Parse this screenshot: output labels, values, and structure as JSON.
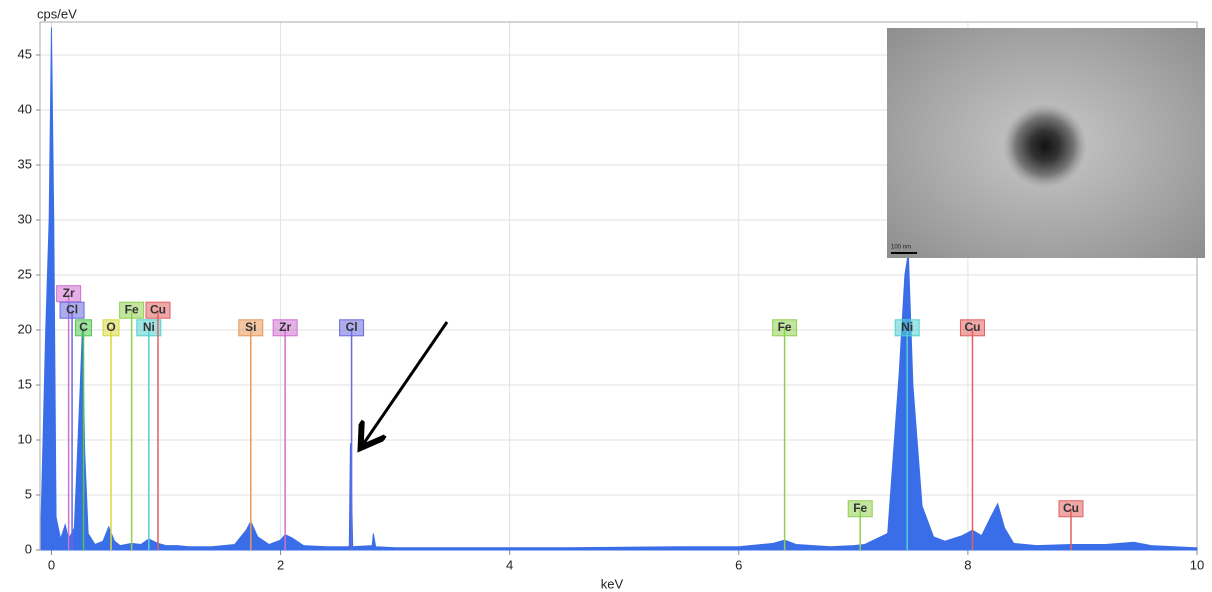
{
  "chart_data": {
    "type": "area",
    "y_label": "cps/eV",
    "x_label": "keV",
    "color": "#3a6ee8",
    "xlim": [
      -0.1,
      10
    ],
    "ylim": [
      0,
      48
    ],
    "xticks": [
      0,
      2,
      4,
      6,
      8,
      10
    ],
    "yticks": [
      0,
      5,
      10,
      15,
      20,
      25,
      30,
      35,
      40,
      45
    ],
    "grid": true,
    "x": [
      -0.09,
      -0.05,
      -0.02,
      0,
      0.02,
      0.04,
      0.08,
      0.12,
      0.15,
      0.2,
      0.25,
      0.27,
      0.29,
      0.32,
      0.38,
      0.45,
      0.5,
      0.55,
      0.6,
      0.7,
      0.78,
      0.85,
      0.93,
      1.0,
      1.1,
      1.2,
      1.4,
      1.6,
      1.7,
      1.74,
      1.8,
      1.9,
      2.0,
      2.04,
      2.1,
      2.2,
      2.4,
      2.6,
      2.61,
      2.63,
      2.8,
      2.81,
      2.83,
      3.0,
      3.5,
      4.0,
      4.5,
      5.0,
      5.5,
      6.0,
      6.3,
      6.4,
      6.5,
      6.8,
      7.0,
      7.1,
      7.3,
      7.4,
      7.45,
      7.48,
      7.52,
      7.6,
      7.7,
      7.8,
      7.95,
      8.04,
      8.12,
      8.2,
      8.26,
      8.32,
      8.4,
      8.6,
      8.9,
      9.2,
      9.45,
      9.6,
      9.8,
      10.0
    ],
    "values": [
      3,
      20,
      30,
      47.5,
      30,
      3,
      1,
      2.3,
      1,
      2,
      14.5,
      20,
      9,
      1.5,
      0.5,
      0.8,
      2.1,
      0.8,
      0.4,
      0.6,
      0.5,
      1.0,
      0.6,
      0.4,
      0.4,
      0.3,
      0.3,
      0.5,
      1.8,
      2.6,
      1.2,
      0.5,
      0.9,
      1.4,
      1.1,
      0.4,
      0.3,
      0.3,
      9.7,
      0.3,
      0.4,
      1.5,
      0.3,
      0.2,
      0.2,
      0.2,
      0.2,
      0.25,
      0.3,
      0.3,
      0.6,
      0.9,
      0.5,
      0.3,
      0.4,
      0.5,
      1.5,
      16,
      25,
      27,
      15,
      4,
      1.2,
      0.8,
      1.3,
      1.8,
      1.3,
      3.0,
      4.2,
      2.0,
      0.6,
      0.4,
      0.5,
      0.5,
      0.7,
      0.4,
      0.3,
      0.2
    ],
    "markers": [
      {
        "label": "Zr",
        "x": 0.15,
        "y": 23.3,
        "color": "#d070d0"
      },
      {
        "label": "Cl",
        "x": 0.18,
        "y": 21.8,
        "color": "#6a6ae0"
      },
      {
        "label": "C",
        "x": 0.28,
        "y": 20.2,
        "color": "#50c850"
      },
      {
        "label": "O",
        "x": 0.52,
        "y": 20.2,
        "color": "#d8d840"
      },
      {
        "label": "Fe",
        "x": 0.7,
        "y": 21.8,
        "color": "#90d050"
      },
      {
        "label": "Ni",
        "x": 0.85,
        "y": 20.2,
        "color": "#50d0d0"
      },
      {
        "label": "Cu",
        "x": 0.93,
        "y": 21.8,
        "color": "#e06060"
      },
      {
        "label": "Si",
        "x": 1.74,
        "y": 20.2,
        "color": "#e89858"
      },
      {
        "label": "Zr",
        "x": 2.04,
        "y": 20.2,
        "color": "#d070d0"
      },
      {
        "label": "Cl",
        "x": 2.62,
        "y": 20.2,
        "color": "#6a6ae0"
      },
      {
        "label": "Fe",
        "x": 6.4,
        "y": 20.2,
        "color": "#90d050"
      },
      {
        "label": "Fe",
        "x": 7.06,
        "y": 3.75,
        "color": "#90d050"
      },
      {
        "label": "Ni",
        "x": 7.47,
        "y": 20.2,
        "color": "#50d0d0"
      },
      {
        "label": "Cu",
        "x": 8.04,
        "y": 20.2,
        "color": "#e06060"
      },
      {
        "label": "Cu",
        "x": 8.9,
        "y": 3.75,
        "color": "#e06060"
      }
    ],
    "inset_label": "100 nm"
  }
}
